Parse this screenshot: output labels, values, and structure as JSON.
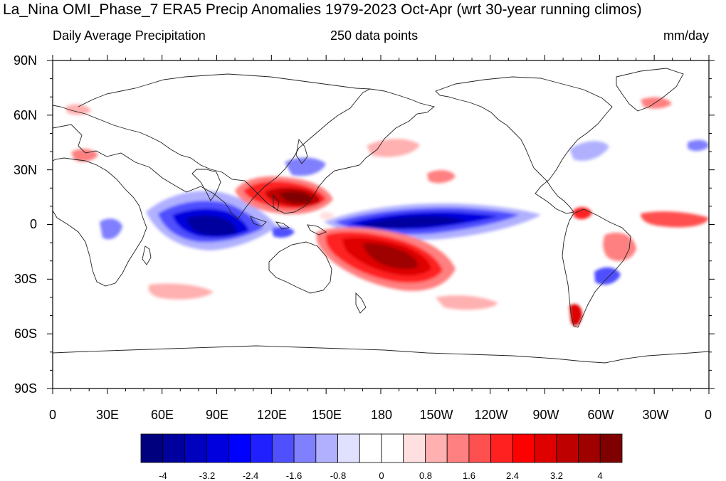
{
  "title": "La_Nina OMI_Phase_7 ERA5 Precip Anomalies 1979-2023 Oct-Apr (wrt 30-year running climos)",
  "subtitle_left": "Daily Average Precipitation",
  "subtitle_center": "250 data points",
  "subtitle_right": "mm/day",
  "lat_labels": [
    "90N",
    "60N",
    "30N",
    "0",
    "30S",
    "60S",
    "90S"
  ],
  "lon_labels": [
    "0",
    "30E",
    "60E",
    "90E",
    "120E",
    "150E",
    "180",
    "150W",
    "120W",
    "90W",
    "60W",
    "30W",
    "0"
  ],
  "colorbar": {
    "tick_labels": [
      "-4",
      "-3.2",
      "-2.4",
      "-1.6",
      "-0.8",
      "0",
      "0.8",
      "1.6",
      "2.4",
      "3.2",
      "4"
    ],
    "colors": [
      "#00007f",
      "#00009f",
      "#0000bf",
      "#0000df",
      "#0000ff",
      "#2020ff",
      "#5050ff",
      "#8080ff",
      "#b0b0ff",
      "#e0e0ff",
      "#ffffff",
      "#ffffff",
      "#ffe0e0",
      "#ffb0b0",
      "#ff8080",
      "#ff5050",
      "#ff2020",
      "#ff0000",
      "#df0000",
      "#bf0000",
      "#9f0000",
      "#7f0000"
    ]
  },
  "map_colors": {
    "frame": "#000000",
    "coast": "#222222"
  }
}
